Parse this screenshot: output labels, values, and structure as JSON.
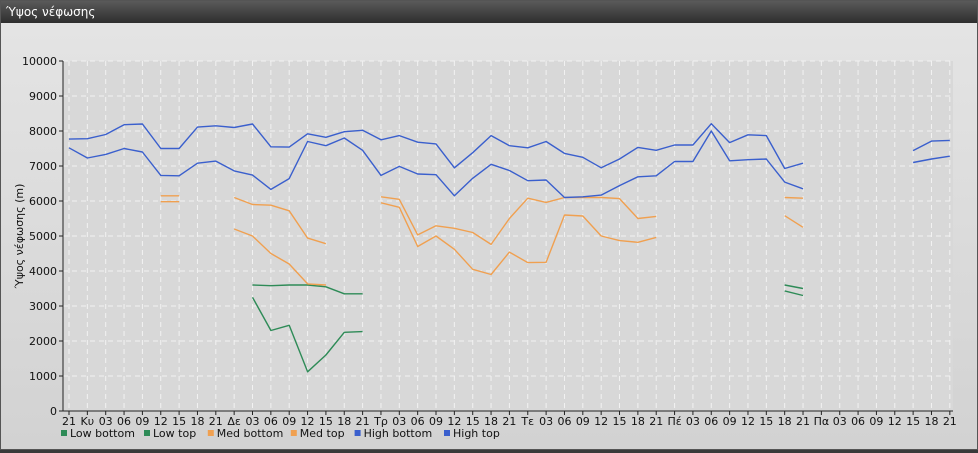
{
  "window": {
    "title": "Ύψος νέφωσης"
  },
  "chart_data": {
    "type": "line",
    "ylabel": "Ύψος νέφωσης (m)",
    "xlabel": "",
    "ylim": [
      0,
      10000
    ],
    "yticks": [
      0,
      1000,
      2000,
      3000,
      4000,
      5000,
      6000,
      7000,
      8000,
      9000,
      10000
    ],
    "grid": true,
    "legend_position": "bottom-left",
    "categories": [
      "21",
      "Κυ",
      "03",
      "06",
      "09",
      "12",
      "15",
      "18",
      "21",
      "Δε",
      "03",
      "06",
      "09",
      "12",
      "15",
      "18",
      "21",
      "Τρ",
      "03",
      "06",
      "09",
      "12",
      "15",
      "18",
      "21",
      "Τε",
      "03",
      "06",
      "09",
      "12",
      "15",
      "18",
      "21",
      "Πέ",
      "03",
      "06",
      "09",
      "12",
      "15",
      "18",
      "21",
      "Πα",
      "03",
      "06",
      "09",
      "12",
      "15",
      "18",
      "21"
    ],
    "series": [
      {
        "name": "Low bottom",
        "color": "#2e8b57",
        "values": [
          null,
          null,
          null,
          null,
          null,
          null,
          null,
          null,
          null,
          null,
          3250,
          2300,
          2450,
          1120,
          1600,
          2250,
          2270,
          null,
          null,
          null,
          null,
          null,
          null,
          null,
          null,
          null,
          null,
          null,
          null,
          null,
          null,
          null,
          null,
          null,
          null,
          null,
          null,
          null,
          null,
          3430,
          3300,
          null,
          null,
          null,
          null,
          null,
          null,
          null,
          null
        ]
      },
      {
        "name": "Low top",
        "color": "#2e8b57",
        "values": [
          null,
          null,
          null,
          null,
          null,
          null,
          null,
          null,
          null,
          null,
          3600,
          3580,
          3600,
          3600,
          3550,
          3350,
          3350,
          null,
          null,
          null,
          null,
          null,
          null,
          null,
          null,
          null,
          null,
          null,
          null,
          null,
          null,
          null,
          null,
          null,
          null,
          null,
          null,
          null,
          null,
          3600,
          3500,
          null,
          null,
          null,
          null,
          null,
          null,
          null,
          null
        ]
      },
      {
        "name": "Med bottom",
        "color": "#f0a050",
        "values": [
          null,
          null,
          null,
          null,
          null,
          5980,
          5980,
          null,
          null,
          5200,
          5000,
          4500,
          4200,
          3630,
          3600,
          null,
          null,
          5950,
          5820,
          4700,
          5000,
          4620,
          4050,
          3900,
          4540,
          4240,
          4250,
          5600,
          5570,
          5000,
          4870,
          4820,
          4960,
          null,
          null,
          null,
          null,
          null,
          null,
          5580,
          5250,
          null,
          null,
          null,
          null,
          null,
          null,
          null,
          null
        ]
      },
      {
        "name": "Med top",
        "color": "#f0a050",
        "values": [
          null,
          null,
          null,
          null,
          null,
          6150,
          6150,
          null,
          null,
          6100,
          5900,
          5880,
          5720,
          4940,
          4780,
          null,
          null,
          6120,
          6050,
          5030,
          5290,
          5220,
          5100,
          4760,
          5500,
          6080,
          5960,
          6100,
          6100,
          6100,
          6070,
          5500,
          5560,
          null,
          null,
          null,
          null,
          null,
          null,
          6100,
          6080,
          null,
          null,
          null,
          null,
          null,
          null,
          null,
          null
        ]
      },
      {
        "name": "High bottom",
        "color": "#3a5fcd",
        "values": [
          7520,
          7230,
          7330,
          7500,
          7400,
          6730,
          6720,
          7080,
          7140,
          6860,
          6740,
          6330,
          6640,
          7700,
          7580,
          7800,
          7450,
          6730,
          6990,
          6770,
          6750,
          6150,
          6650,
          7050,
          6870,
          6580,
          6600,
          6100,
          6120,
          6170,
          6440,
          6690,
          6720,
          7130,
          7130,
          8000,
          7150,
          7180,
          7200,
          6540,
          6350,
          null,
          null,
          null,
          null,
          null,
          7100,
          7200,
          7280
        ]
      },
      {
        "name": "High top",
        "color": "#3a5fcd",
        "values": [
          7770,
          7780,
          7900,
          8180,
          8200,
          7500,
          7500,
          8110,
          8150,
          8100,
          8200,
          7550,
          7540,
          7920,
          7820,
          7980,
          8020,
          7750,
          7870,
          7680,
          7630,
          6950,
          7380,
          7870,
          7580,
          7520,
          7700,
          7360,
          7250,
          6950,
          7200,
          7530,
          7450,
          7600,
          7600,
          8210,
          7670,
          7890,
          7870,
          6930,
          7080,
          null,
          null,
          null,
          null,
          null,
          7440,
          7710,
          7730
        ]
      }
    ]
  }
}
